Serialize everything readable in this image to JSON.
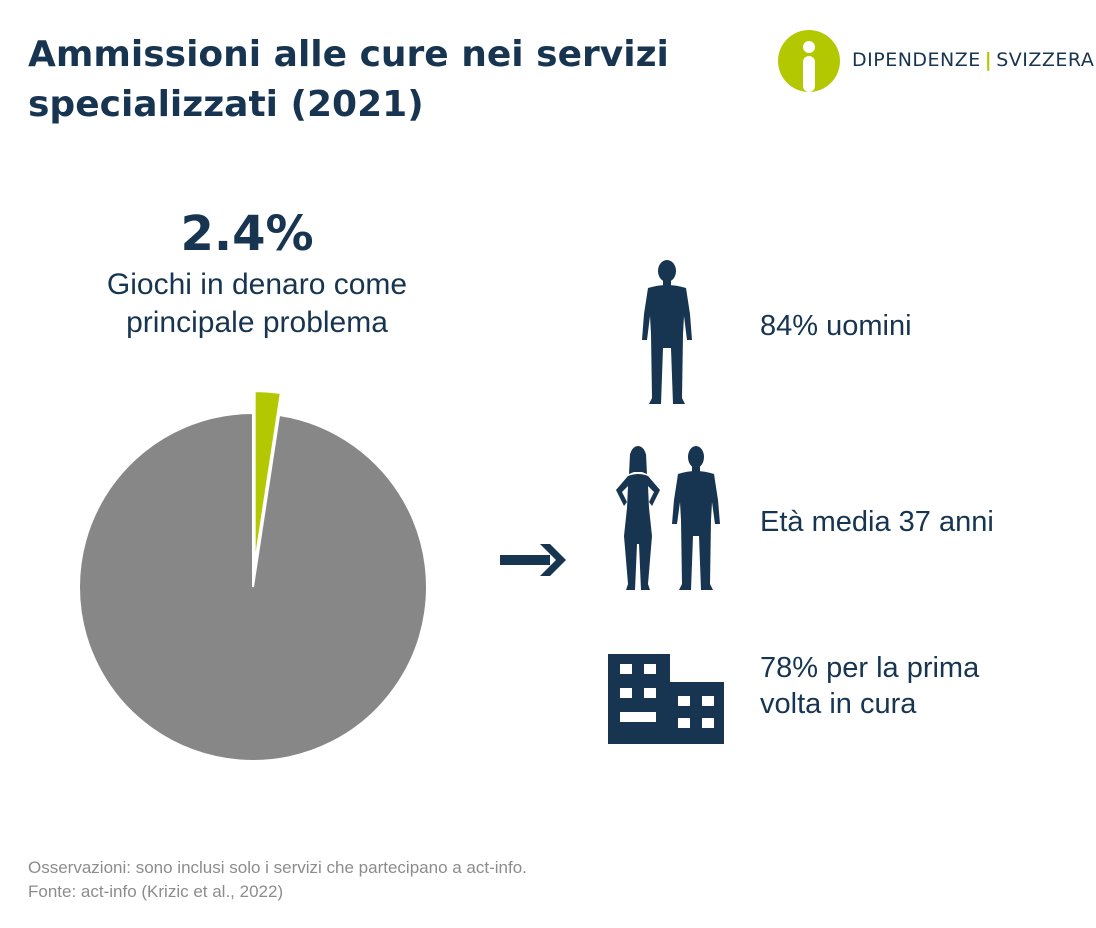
{
  "title": {
    "line1": "Ammissioni alle cure nei servizi",
    "line2": "specializzati (2021)"
  },
  "logo": {
    "left": "DIPENDENZE",
    "separator": "|",
    "right": "SVIZZERA",
    "accent_color": "#b3c800"
  },
  "highlight": {
    "value": "2.4%",
    "label_line1": "Giochi in denaro come",
    "label_line2": "principale problema"
  },
  "chart_data": {
    "type": "pie",
    "slices": [
      {
        "label": "Giochi in denaro come principale problema",
        "value": 2.4,
        "color": "#b3c800",
        "exploded": true
      },
      {
        "value": 97.6,
        "color": "#878787"
      }
    ]
  },
  "stats": [
    {
      "icon": "man-silhouette-icon",
      "line1": "84% uomini"
    },
    {
      "icon": "woman-and-man-silhouette-icon",
      "line1": "Età media 37 anni"
    },
    {
      "icon": "building-icon",
      "line1": "78% per la prima",
      "line2": "volta in cura"
    }
  ],
  "footer": {
    "note": "Osservazioni: sono inclusi solo i servizi che partecipano a act-info.",
    "source": "Fonte: act-info (Krizic et al., 2022)"
  },
  "colors": {
    "navy": "#173451",
    "lime": "#b3c800",
    "grey": "#878787"
  }
}
